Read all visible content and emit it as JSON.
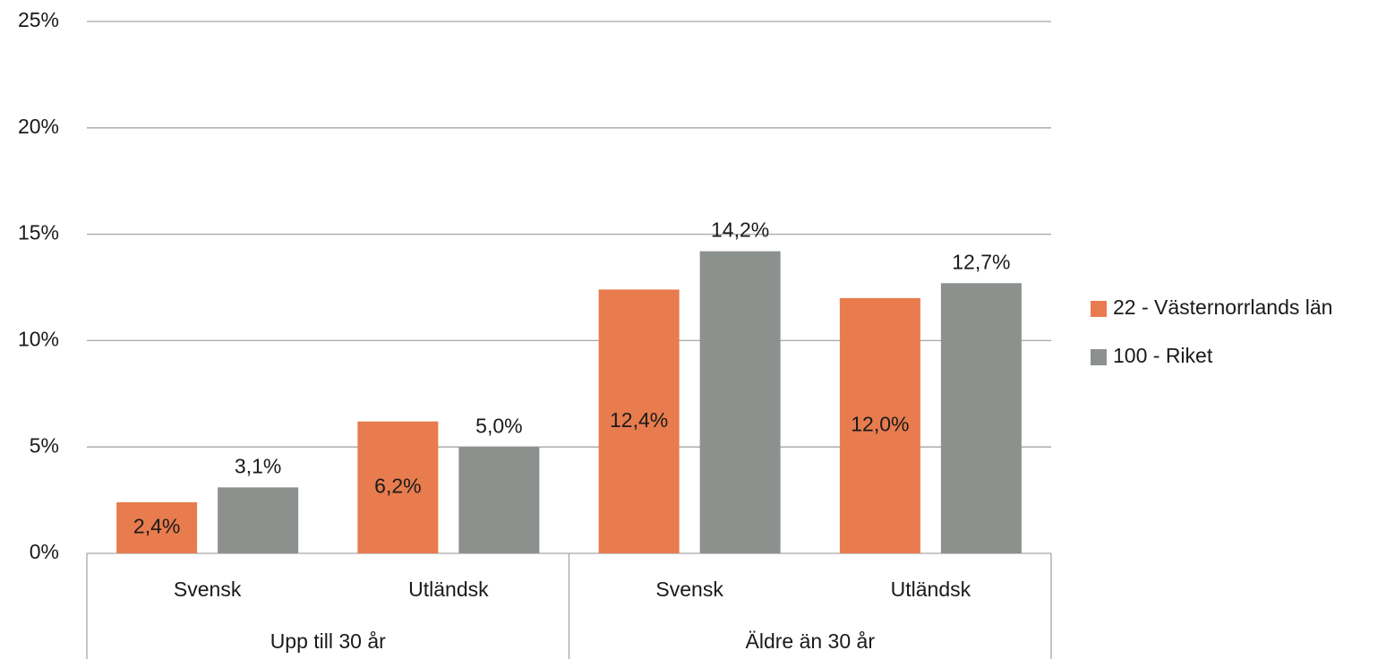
{
  "chart_data": {
    "type": "bar",
    "categories": [
      "Svensk",
      "Utländsk",
      "Svensk",
      "Utländsk"
    ],
    "group_labels": [
      "Upp till 30 år",
      "Äldre än 30 år"
    ],
    "series": [
      {
        "name": "22 - Västernorrlands län",
        "color": "#e87c4e",
        "values": [
          2.4,
          6.2,
          12.4,
          12.0
        ],
        "value_labels": [
          "2,4%",
          "6,2%",
          "12,4%",
          "12,0%"
        ]
      },
      {
        "name": "100 - Riket",
        "color": "#8c918e",
        "values": [
          3.1,
          5.0,
          14.2,
          12.7
        ],
        "value_labels": [
          "3,1%",
          "5,0%",
          "14,2%",
          "12,7%"
        ]
      }
    ],
    "ylim": [
      0,
      25
    ],
    "yticks": [
      {
        "value": 0,
        "label": "0%"
      },
      {
        "value": 5,
        "label": "5%"
      },
      {
        "value": 10,
        "label": "10%"
      },
      {
        "value": 15,
        "label": "15%"
      },
      {
        "value": 20,
        "label": "20%"
      },
      {
        "value": 25,
        "label": "25%"
      }
    ],
    "grid": true,
    "legend": "right"
  }
}
